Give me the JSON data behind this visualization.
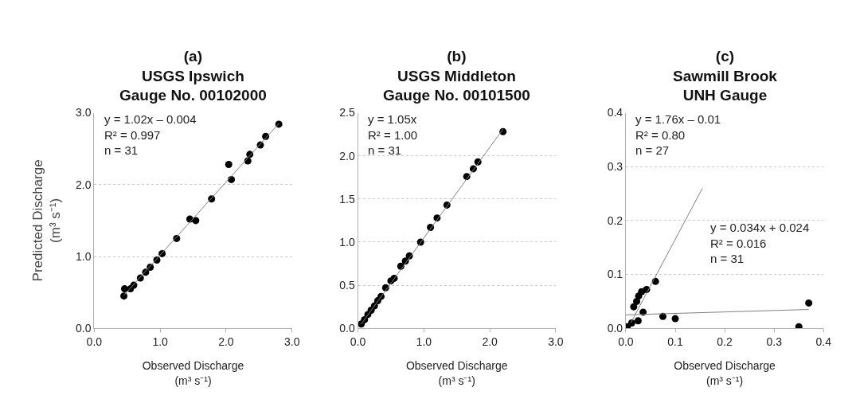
{
  "chart_data": [
    {
      "type": "scatter",
      "title": "(a)\nUSGS Ipswich\nGauge No. 00102000",
      "xlabel": "Observed Discharge\n(m³ s⁻¹)",
      "ylabel": "Predicted Discharge\n(m³ s⁻¹)",
      "xlim": [
        0,
        3
      ],
      "ylim": [
        0,
        3
      ],
      "xticks": [
        {
          "value": 0,
          "label": "0.0"
        },
        {
          "value": 1,
          "label": "1.0"
        },
        {
          "value": 2,
          "label": "2.0"
        },
        {
          "value": 3,
          "label": "3.0"
        }
      ],
      "yticks": [
        {
          "value": 0,
          "label": "0.0"
        },
        {
          "value": 1,
          "label": "1.0"
        },
        {
          "value": 2,
          "label": "2.0"
        },
        {
          "value": 3,
          "label": "3.0"
        }
      ],
      "grid": "y",
      "annotations": [
        "y = 1.02x – 0.004\nR² = 0.997\nn = 31"
      ],
      "series": [
        {
          "marker": "circle",
          "color": "#000000",
          "x": [
            0.45,
            0.46,
            0.55,
            0.6,
            0.7,
            0.78,
            0.85,
            0.95,
            1.03,
            1.25,
            1.45,
            1.54,
            1.78,
            2.04,
            2.08,
            2.33,
            2.36,
            2.52,
            2.6,
            2.8
          ],
          "values": [
            0.45,
            0.55,
            0.55,
            0.6,
            0.7,
            0.78,
            0.85,
            0.95,
            1.04,
            1.25,
            1.52,
            1.5,
            1.8,
            2.28,
            2.07,
            2.33,
            2.42,
            2.55,
            2.67,
            2.84
          ]
        },
        {
          "type": "line",
          "marker": "none",
          "color": "#808080",
          "x": [
            0.45,
            2.8
          ],
          "values": [
            0.46,
            2.85
          ]
        }
      ]
    },
    {
      "type": "scatter",
      "title": "(b)\nUSGS Middleton\nGauge No. 00101500",
      "xlabel": "Observed Discharge\n(m³ s⁻¹)",
      "xlim": [
        0,
        3
      ],
      "ylim": [
        0,
        2.5
      ],
      "xticks": [
        {
          "value": 0,
          "label": "0.0"
        },
        {
          "value": 1,
          "label": "1.0"
        },
        {
          "value": 2,
          "label": "2.0"
        },
        {
          "value": 3,
          "label": "3.0"
        }
      ],
      "yticks": [
        {
          "value": 0,
          "label": "0.0"
        },
        0.5,
        {
          "value": 1,
          "label": "1.0"
        },
        1.5,
        {
          "value": 2,
          "label": "2.0"
        },
        2.5
      ],
      "grid": "y",
      "annotations": [
        "y = 1.05x\nR² = 1.00\nn = 31"
      ],
      "series": [
        {
          "marker": "circle",
          "color": "#000000",
          "x": [
            0.05,
            0.1,
            0.15,
            0.2,
            0.25,
            0.3,
            0.35,
            0.42,
            0.5,
            0.55,
            0.65,
            0.72,
            0.78,
            0.95,
            1.1,
            1.2,
            1.35,
            1.65,
            1.75,
            1.82,
            2.2
          ],
          "values": [
            0.05,
            0.1,
            0.16,
            0.21,
            0.26,
            0.32,
            0.37,
            0.47,
            0.55,
            0.58,
            0.72,
            0.78,
            0.84,
            1.0,
            1.17,
            1.28,
            1.43,
            1.76,
            1.85,
            1.93,
            2.28
          ]
        },
        {
          "type": "line",
          "marker": "none",
          "color": "#808080",
          "x": [
            0.05,
            2.2
          ],
          "values": [
            0.05,
            2.31
          ]
        }
      ]
    },
    {
      "type": "scatter",
      "title": "(c)\nSawmill Brook\nUNH Gauge",
      "xlabel": "Observed Discharge\n(m³ s⁻¹)",
      "xlim": [
        0,
        0.4
      ],
      "ylim": [
        0,
        0.4
      ],
      "xticks": [
        {
          "value": 0,
          "label": "0.0"
        },
        0.1,
        0.2,
        0.3,
        0.4
      ],
      "yticks": [
        {
          "value": 0,
          "label": "0.0"
        },
        0.1,
        0.2,
        0.3,
        0.4
      ],
      "grid": "y",
      "annotations": [
        "y = 1.76x – 0.01\nR² = 0.80\nn = 27",
        "y = 0.034x + 0.024\nR² = 0.016\nn = 31"
      ],
      "series": [
        {
          "marker": "circle",
          "color": "#000000",
          "x": [
            0.003,
            0.012,
            0.016,
            0.022,
            0.026,
            0.032,
            0.042,
            0.06,
            0.025,
            0.035,
            0.075,
            0.1,
            0.35,
            0.37
          ],
          "values": [
            0.003,
            0.01,
            0.04,
            0.05,
            0.06,
            0.068,
            0.072,
            0.087,
            0.014,
            0.03,
            0.022,
            0.018,
            0.003,
            0.047
          ]
        },
        {
          "type": "line",
          "marker": "none",
          "color": "#808080",
          "x": [
            0.01,
            0.155
          ],
          "values": [
            0.01,
            0.26
          ]
        },
        {
          "type": "line",
          "marker": "none",
          "color": "#808080",
          "x": [
            0,
            0.37
          ],
          "values": [
            0.025,
            0.035
          ]
        }
      ]
    }
  ]
}
